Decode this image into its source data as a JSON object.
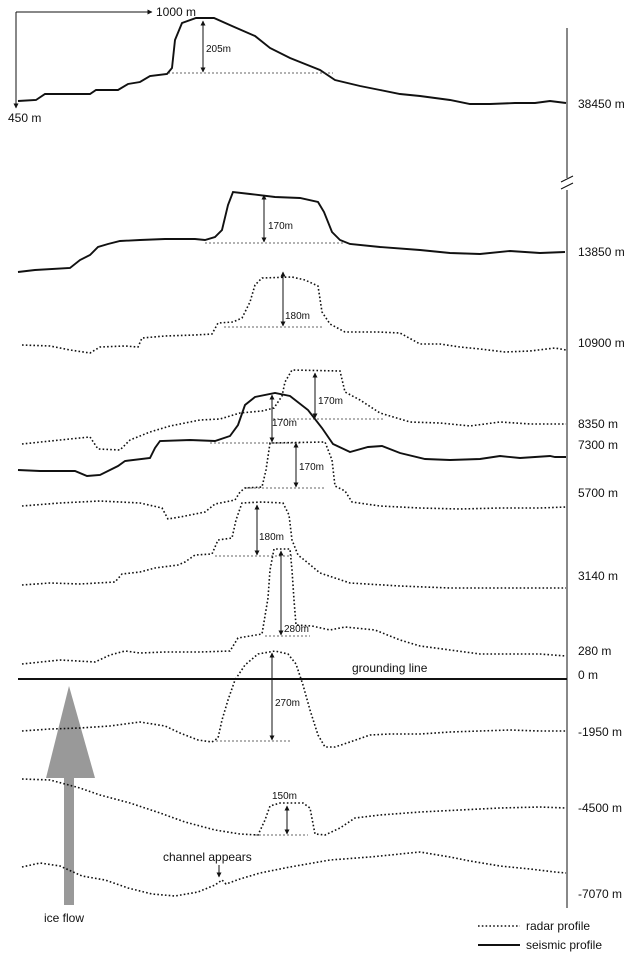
{
  "scale": {
    "horizontal": "1000 m",
    "vertical": "450 m"
  },
  "grounding_line": {
    "label": "grounding line",
    "distance": "0 m"
  },
  "ice_flow": {
    "label": "ice flow",
    "color": "#999999"
  },
  "legend": {
    "radar": "radar profile",
    "seismic": "seismic profile"
  },
  "annotation": {
    "channel": "channel appears"
  },
  "profiles": [
    {
      "distance": "38450 m",
      "type": "seismic",
      "height": "205m"
    },
    {
      "distance": "13850 m",
      "type": "seismic",
      "height": "170m"
    },
    {
      "distance": "10900 m",
      "type": "radar",
      "height": "180m"
    },
    {
      "distance": "8350 m",
      "type": "radar",
      "height": "170m"
    },
    {
      "distance": "7300 m",
      "type": "seismic",
      "height": "170m"
    },
    {
      "distance": "5700 m",
      "type": "radar",
      "height": "170m"
    },
    {
      "distance": "3140 m",
      "type": "radar",
      "height": "180m"
    },
    {
      "distance": "280 m",
      "type": "radar",
      "height": "280m"
    },
    {
      "distance": "-1950 m",
      "type": "radar",
      "height": "270m"
    },
    {
      "distance": "-4500 m",
      "type": "radar",
      "height": "150m"
    },
    {
      "distance": "-7070 m",
      "type": "radar",
      "height": ""
    }
  ]
}
